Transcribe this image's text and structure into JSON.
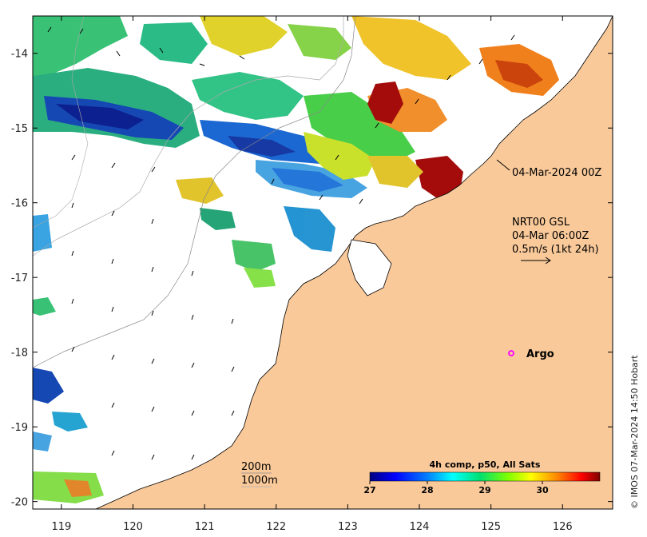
{
  "map": {
    "lon_range": [
      118.6,
      126.7
    ],
    "lat_range": [
      -20.1,
      -13.5
    ],
    "lon_ticks": [
      119,
      120,
      121,
      122,
      123,
      124,
      125,
      126
    ],
    "lat_ticks": [
      -14,
      -15,
      -16,
      -17,
      -18,
      -19,
      -20
    ],
    "land_color": "#f9c99a",
    "ocean_color": "#ffffff"
  },
  "annotations": {
    "sst_time": "04-Mar-2024 00Z",
    "current_product": "NRT00 GSL",
    "current_time": "04-Mar 06:00Z",
    "current_scale": "0.5m/s (1kt 24h)"
  },
  "argo": {
    "label": "Argo",
    "lon": 125.28,
    "lat": -18.02,
    "color": "#ff00ff"
  },
  "isobaths": {
    "label_200": "200m",
    "label_1000": "1000m"
  },
  "colorbar": {
    "title": "4h comp, p50, All Sats",
    "min": 27,
    "max": 31,
    "ticks": [
      "27",
      "28",
      "29",
      "30"
    ],
    "colors": [
      "#00007f",
      "#0000ff",
      "#007fff",
      "#00ffff",
      "#00ff7f",
      "#7fff00",
      "#ffff00",
      "#ff7f00",
      "#ff0000",
      "#7f0000"
    ]
  },
  "credit": "© IMOS 07-Mar-2024 14:50 Hobart"
}
